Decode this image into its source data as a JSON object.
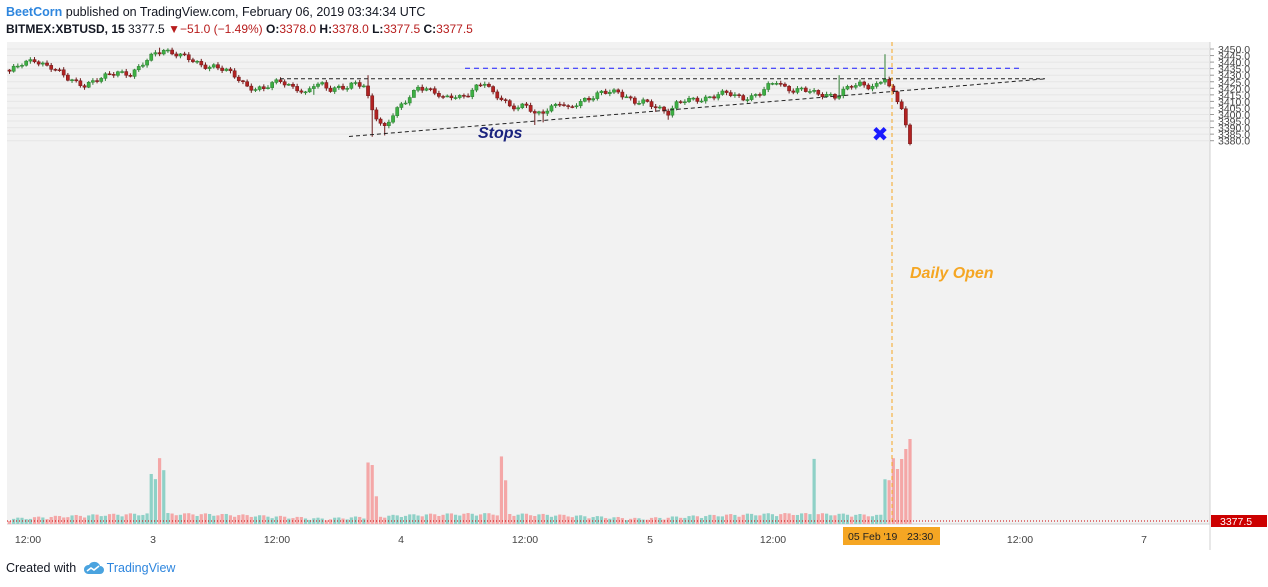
{
  "header": {
    "author": "BeetCorn",
    "published": " published on TradingView.com, February 06, 2019 03:34:34 UTC",
    "symbol": "BITMEX:XBTUSD, 15",
    "last": " 3377.5 ",
    "arrow": "▼",
    "change": "−51.0 (−1.49%)",
    "o_label": " O:",
    "o_val": "3378.0",
    "h_label": " H:",
    "h_val": "3378.0",
    "l_label": " L:",
    "l_val": "3377.5",
    "c_label": " C:",
    "c_val": "3377.5"
  },
  "footer": {
    "created_with": "Created with ",
    "brand": "TradingView"
  },
  "colors": {
    "up": "#26a69a",
    "upFill": "#3cb043",
    "down": "#a52a2a",
    "downFill": "#b22222",
    "stops": "#1a1aff",
    "daily": "#f5a623",
    "price_tag": "#cc0000",
    "time_tag": "#f5a623"
  },
  "chart_data": {
    "type": "candlestick",
    "symbol": "BITMEX:XBTUSD",
    "interval": "15",
    "y_ticks": [
      3380.0,
      3385.0,
      3390.0,
      3395.0,
      3400.0,
      3405.0,
      3410.0,
      3415.0,
      3420.0,
      3425.0,
      3430.0,
      3435.0,
      3440.0,
      3445.0,
      3450.0
    ],
    "y_range": [
      3378.5,
      3450.5
    ],
    "x_ticks": [
      "12:00",
      "3",
      "12:00",
      "4",
      "12:00",
      "5",
      "12:00",
      "05 Feb '19",
      "23:30",
      "12:00",
      "7"
    ],
    "current_price": "3377.5",
    "annotations": {
      "stops": "Stops",
      "daily_open": "Daily Open",
      "stops_level": 3435.3,
      "resistance_level": 3427.3,
      "x_marker": "✖"
    },
    "support_trendline": [
      {
        "time": "Feb 3 ~15:30",
        "price": 3383.2
      },
      {
        "time": "Feb 6 ~05:00",
        "price": 3427.2
      }
    ],
    "volume_note": "volume histogram along bottom"
  }
}
